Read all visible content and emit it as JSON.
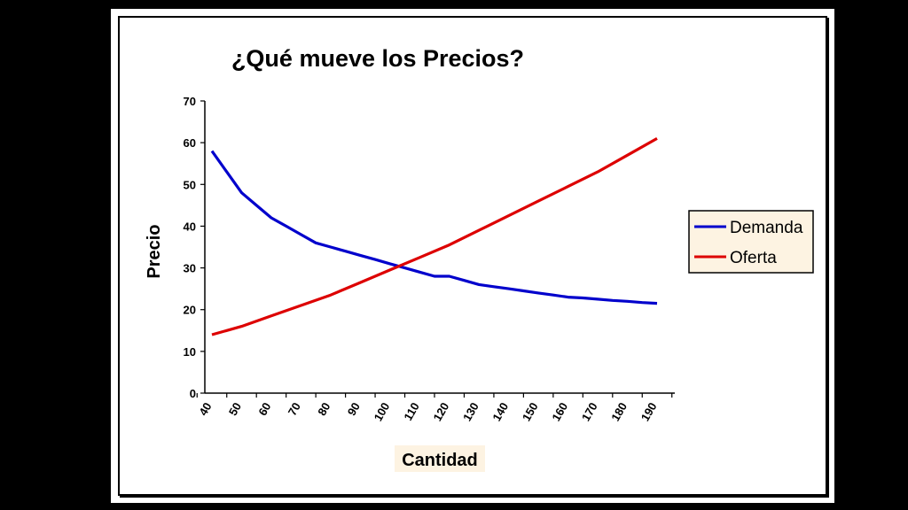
{
  "chart_data": {
    "type": "line",
    "title": "¿Qué mueve los Precios?",
    "xlabel": "Cantidad",
    "ylabel": "Precio",
    "xlim": [
      40,
      190
    ],
    "ylim": [
      0,
      70
    ],
    "x_ticks": [
      40,
      50,
      60,
      70,
      80,
      90,
      100,
      110,
      120,
      130,
      140,
      150,
      160,
      170,
      180,
      190
    ],
    "y_ticks": [
      0,
      10,
      20,
      30,
      40,
      50,
      60,
      70
    ],
    "grid": false,
    "legend_position": "right",
    "series": [
      {
        "name": "Demanda",
        "color": "#0000cc",
        "x": [
          40,
          45,
          50,
          55,
          60,
          65,
          70,
          75,
          80,
          85,
          90,
          95,
          100,
          105,
          110,
          115,
          120,
          125,
          130,
          135,
          140,
          145,
          150,
          155,
          160,
          165,
          170,
          175,
          180,
          185,
          190
        ],
        "values": [
          58,
          53,
          48,
          45,
          42,
          40,
          38,
          36,
          35,
          34,
          33,
          32,
          31,
          30,
          29,
          28,
          28,
          27,
          26,
          25.5,
          25,
          24.5,
          24,
          23.5,
          23,
          22.8,
          22.5,
          22.2,
          22,
          21.7,
          21.5
        ]
      },
      {
        "name": "Oferta",
        "color": "#dd0000",
        "x": [
          40,
          50,
          60,
          70,
          80,
          90,
          100,
          110,
          120,
          130,
          140,
          150,
          160,
          170,
          180,
          190
        ],
        "values": [
          14,
          16,
          18.5,
          21,
          23.5,
          26.5,
          29.5,
          32.5,
          35.5,
          39,
          42.5,
          46,
          49.5,
          53,
          57,
          61
        ]
      }
    ]
  }
}
